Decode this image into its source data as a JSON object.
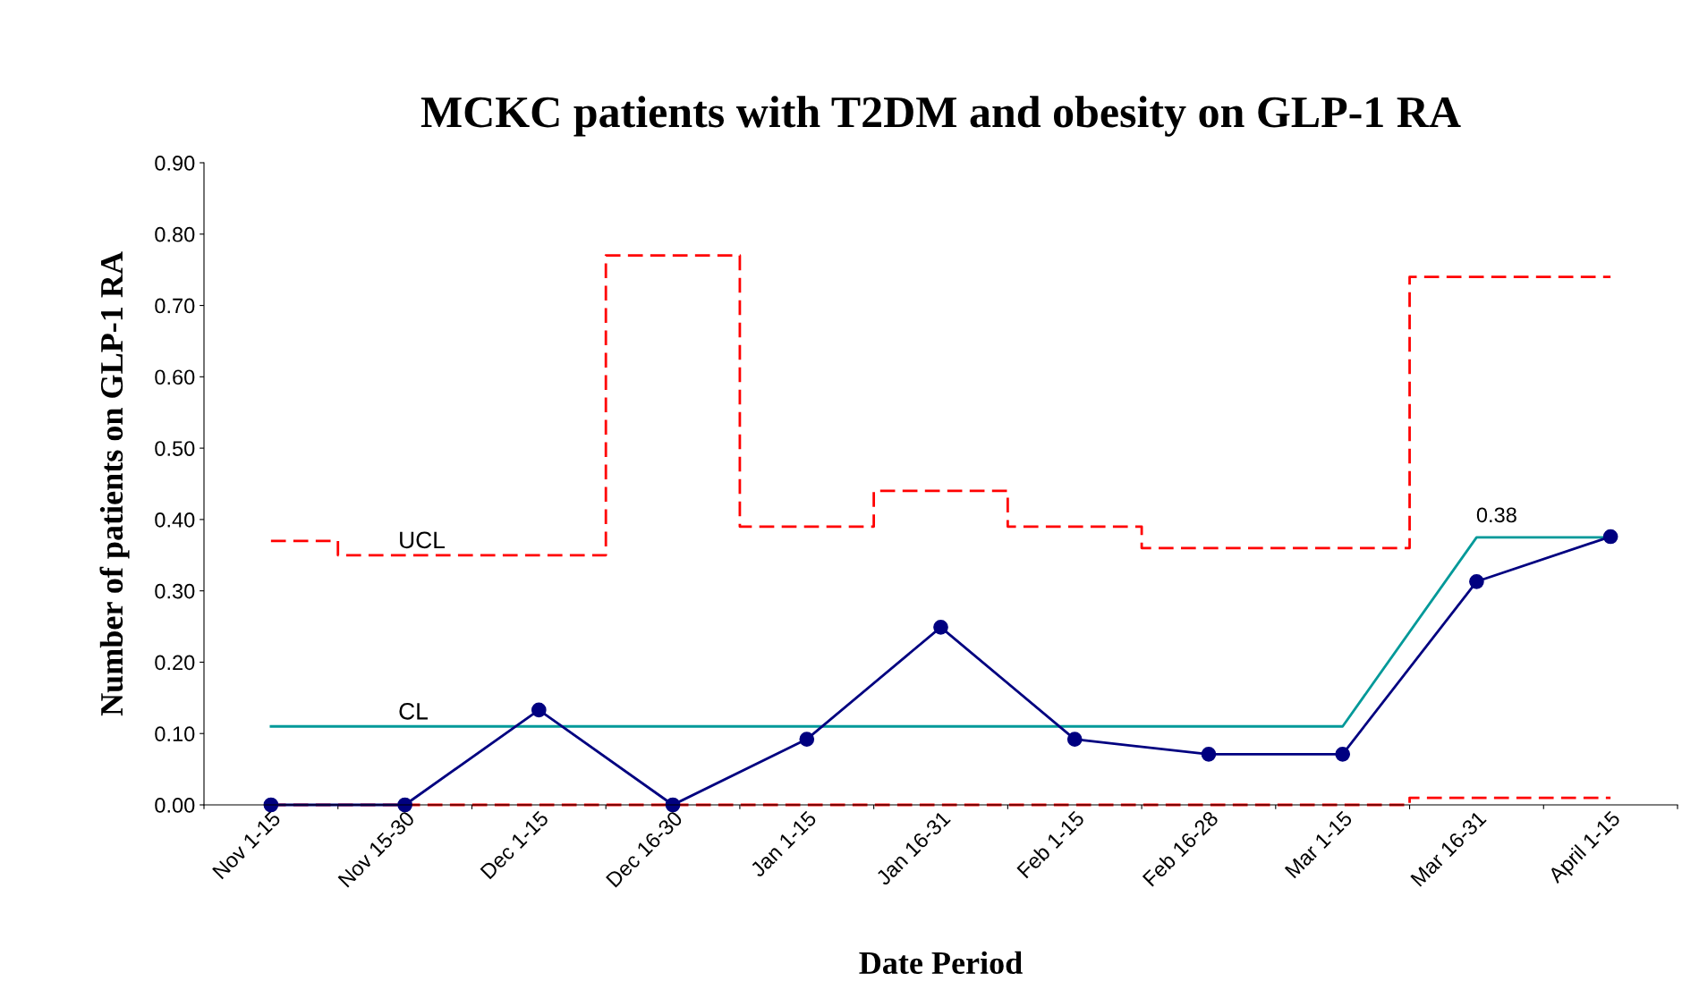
{
  "chart_data": {
    "type": "line",
    "title": "MCKC patients with T2DM and obesity on GLP-1 RA",
    "xlabel": "Date Period",
    "ylabel": "Number of patients on GLP-1 RA",
    "categories": [
      "Nov 1-15",
      "Nov 15-30",
      "Dec 1-15",
      "Dec 16-30",
      "Jan 1-15",
      "Jan 16-31",
      "Feb 1-15",
      "Feb 16-28",
      "Mar 1-15",
      "Mar 16-31",
      "April 1-15"
    ],
    "series": [
      {
        "name": "UCL",
        "type": "step",
        "color": "#ff0000",
        "line_style": "dashed",
        "values": [
          0.37,
          0.35,
          0.35,
          0.77,
          0.39,
          0.44,
          0.39,
          0.36,
          0.36,
          0.74,
          0.74
        ]
      },
      {
        "type": "step",
        "color": "#ff0000",
        "line_style": "dashed",
        "values": [
          0,
          0,
          0,
          0,
          0,
          0,
          0,
          0,
          0,
          0.01,
          0.01
        ]
      },
      {
        "name": "CL",
        "color": "#009999",
        "line_style": "solid",
        "marker": "none",
        "values": [
          0.11,
          0.11,
          0.11,
          0.11,
          0.11,
          0.11,
          0.11,
          0.11,
          0.11,
          0.375,
          0.375
        ],
        "value_labels": [
          null,
          null,
          null,
          null,
          null,
          null,
          null,
          null,
          null,
          "0.38",
          null
        ]
      },
      {
        "color": "#000080",
        "line_style": "solid",
        "marker": "circle",
        "values": [
          0,
          0,
          0.133,
          0,
          0.092,
          0.249,
          0.092,
          0.071,
          0.071,
          0.313,
          0.376
        ]
      }
    ],
    "ylim": [
      0,
      0.9
    ],
    "yticks": [
      {
        "value": 0,
        "label": "0.00"
      },
      {
        "value": 0.1,
        "label": "0.10"
      },
      {
        "value": 0.2,
        "label": "0.20"
      },
      {
        "value": 0.3,
        "label": "0.30"
      },
      {
        "value": 0.4,
        "label": "0.40"
      },
      {
        "value": 0.5,
        "label": "0.50"
      },
      {
        "value": 0.6,
        "label": "0.60"
      },
      {
        "value": 0.7,
        "label": "0.70"
      },
      {
        "value": 0.8,
        "label": "0.80"
      },
      {
        "value": 0.9,
        "label": "0.90"
      }
    ],
    "grid": false,
    "legend": false
  }
}
